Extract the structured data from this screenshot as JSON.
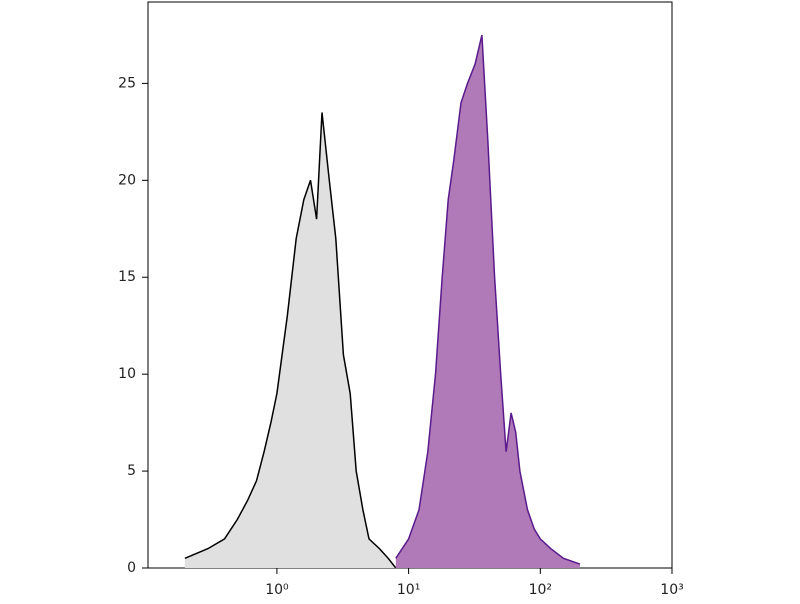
{
  "chart_data": {
    "type": "area",
    "xscale": "log",
    "xlim": [
      0.105,
      1000
    ],
    "ylim": [
      0,
      29.2
    ],
    "xticks": [
      {
        "value": 1,
        "label": "10⁰"
      },
      {
        "value": 10,
        "label": "10¹"
      },
      {
        "value": 100,
        "label": "10²"
      },
      {
        "value": 1000,
        "label": "10³"
      }
    ],
    "yticks": [
      0,
      5,
      10,
      15,
      20,
      25
    ],
    "series": [
      {
        "color": "#000000",
        "fill": "#e0e0e0",
        "x": [
          0.2,
          0.3,
          0.4,
          0.5,
          0.6,
          0.7,
          0.8,
          0.9,
          1.0,
          1.2,
          1.4,
          1.6,
          1.8,
          2.0,
          2.2,
          2.5,
          2.8,
          3.2,
          3.6,
          4.0,
          4.5,
          5.0,
          6,
          7,
          8
        ],
        "values": [
          0.5,
          1,
          1.5,
          2.5,
          3.5,
          4.5,
          6,
          7.5,
          9,
          13,
          17,
          19,
          20,
          18,
          23.5,
          20,
          17,
          11,
          9,
          5,
          3,
          1.5,
          1,
          0.5,
          0
        ]
      },
      {
        "color": "#5a1a8c",
        "fill": "#b07ab8",
        "x": [
          8,
          10,
          12,
          14,
          16,
          18,
          20,
          22,
          25,
          28,
          32,
          36,
          40,
          45,
          50,
          55,
          60,
          65,
          70,
          80,
          90,
          100,
          120,
          150,
          200
        ],
        "values": [
          0.5,
          1.5,
          3,
          6,
          10,
          15,
          19,
          21,
          24,
          25,
          26,
          27.5,
          22,
          15,
          10,
          6,
          8,
          7,
          5,
          3,
          2,
          1.5,
          1,
          0.5,
          0.2
        ]
      }
    ]
  }
}
